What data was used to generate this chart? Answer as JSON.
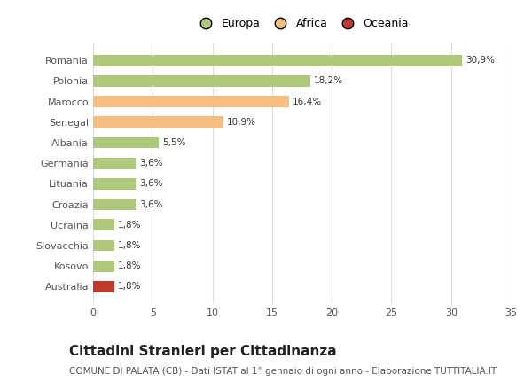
{
  "categories": [
    "Romania",
    "Polonia",
    "Marocco",
    "Senegal",
    "Albania",
    "Germania",
    "Lituania",
    "Croazia",
    "Ucraina",
    "Slovacchia",
    "Kosovo",
    "Australia"
  ],
  "values": [
    30.9,
    18.2,
    16.4,
    10.9,
    5.5,
    3.6,
    3.6,
    3.6,
    1.8,
    1.8,
    1.8,
    1.8
  ],
  "labels": [
    "30,9%",
    "18,2%",
    "16,4%",
    "10,9%",
    "5,5%",
    "3,6%",
    "3,6%",
    "3,6%",
    "1,8%",
    "1,8%",
    "1,8%",
    "1,8%"
  ],
  "colors": [
    "#adc878",
    "#adc878",
    "#f5bd7e",
    "#f5bd7e",
    "#adc878",
    "#adc878",
    "#adc878",
    "#adc878",
    "#adc878",
    "#adc878",
    "#adc878",
    "#c0392b"
  ],
  "legend_labels": [
    "Europa",
    "Africa",
    "Oceania"
  ],
  "legend_colors": [
    "#adc878",
    "#f5bd7e",
    "#c0392b"
  ],
  "title": "Cittadini Stranieri per Cittadinanza",
  "subtitle": "COMUNE DI PALATA (CB) - Dati ISTAT al 1° gennaio di ogni anno - Elaborazione TUTTITALIA.IT",
  "xlim": [
    0,
    35
  ],
  "xticks": [
    0,
    5,
    10,
    15,
    20,
    25,
    30,
    35
  ],
  "background_color": "#ffffff",
  "grid_color": "#dddddd",
  "bar_height": 0.55,
  "title_fontsize": 11,
  "subtitle_fontsize": 7.5,
  "label_fontsize": 7.5,
  "tick_fontsize": 8,
  "legend_fontsize": 9
}
